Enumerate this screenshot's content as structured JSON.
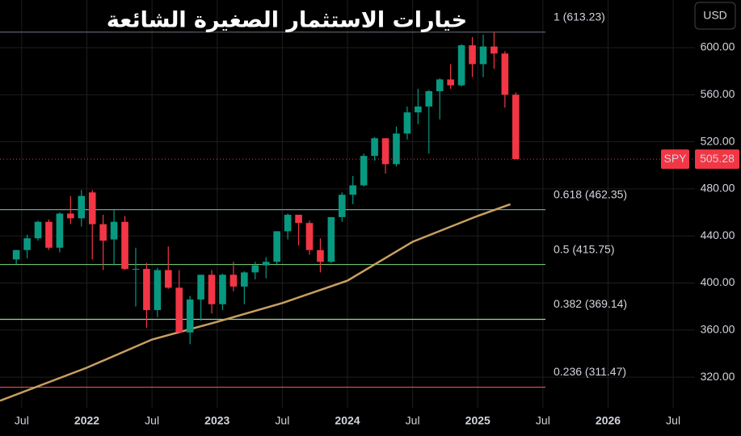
{
  "chart_data": {
    "type": "candlestick",
    "title": "خيارات الاستثمار الصغيرة الشائعة",
    "currency": "USD",
    "symbol": "SPY",
    "last_price": 505.28,
    "up_color": "#089981",
    "down_color": "#f23645",
    "x": [
      "2021-06",
      "2021-07",
      "2021-08",
      "2021-09",
      "2021-10",
      "2021-11",
      "2021-12",
      "2022-01",
      "2022-02",
      "2022-03",
      "2022-04",
      "2022-05",
      "2022-06",
      "2022-07",
      "2022-08",
      "2022-09",
      "2022-10",
      "2022-11",
      "2022-12",
      "2023-01",
      "2023-02",
      "2023-03",
      "2023-04",
      "2023-05",
      "2023-06",
      "2023-07",
      "2023-08",
      "2023-09",
      "2023-10",
      "2023-11",
      "2023-12",
      "2024-01",
      "2024-02",
      "2024-03",
      "2024-04",
      "2024-05",
      "2024-06",
      "2024-07",
      "2024-08",
      "2024-09",
      "2024-10",
      "2024-11",
      "2024-12",
      "2025-01",
      "2025-02",
      "2025-03",
      "2025-04"
    ],
    "open": [
      420,
      428,
      438,
      452,
      430,
      459,
      455,
      477,
      450,
      437,
      452,
      412,
      412,
      377,
      411,
      396,
      358,
      386,
      407,
      382,
      407,
      397,
      409,
      415,
      418,
      444,
      458,
      451,
      428,
      418,
      456,
      475,
      483,
      508,
      523,
      501,
      527,
      545,
      550,
      563,
      573,
      568,
      602,
      586,
      601,
      595,
      560
    ],
    "high": [
      428,
      441,
      453,
      454,
      460,
      474,
      479,
      479,
      458,
      462,
      457,
      430,
      417,
      413,
      431,
      411,
      389,
      407,
      411,
      408,
      418,
      410,
      418,
      422,
      444,
      459,
      458,
      453,
      438,
      456,
      477,
      491,
      510,
      524,
      523,
      533,
      550,
      565,
      564,
      574,
      586,
      603,
      609,
      611,
      613,
      597,
      562
    ],
    "low": [
      416,
      421,
      436,
      428,
      426,
      450,
      448,
      420,
      411,
      415,
      411,
      380,
      362,
      371,
      395,
      357,
      348,
      368,
      374,
      377,
      393,
      382,
      403,
      404,
      416,
      437,
      432,
      424,
      409,
      417,
      452,
      467,
      482,
      504,
      493,
      499,
      522,
      535,
      510,
      539,
      565,
      567,
      575,
      575,
      582,
      549,
      505
    ],
    "close": [
      428,
      438,
      452,
      430,
      459,
      455,
      474,
      450,
      436,
      452,
      412,
      412,
      377,
      411,
      396,
      358,
      386,
      407,
      382,
      407,
      397,
      409,
      415,
      418,
      444,
      458,
      451,
      428,
      418,
      456,
      475,
      483,
      508,
      523,
      501,
      527,
      545,
      550,
      563,
      573,
      568,
      602,
      586,
      601,
      595,
      560,
      505.28
    ],
    "ma": {
      "color": "#c8a060",
      "x": [
        "2021-05",
        "2022-01",
        "2022-07",
        "2023-01",
        "2023-07",
        "2024-01",
        "2024-07",
        "2025-01",
        "2025-04"
      ],
      "values": [
        300,
        328,
        352,
        367,
        383,
        402,
        435,
        457,
        467
      ]
    },
    "fib_levels": [
      {
        "value": 613.23,
        "label": "1 (613.23)",
        "color": "#5d606b"
      },
      {
        "value": 462.35,
        "label": "0.618 (462.35)",
        "color": "#5fa3a3"
      },
      {
        "value": 415.75,
        "label": "0.5 (415.75)",
        "color": "#6fbf6f"
      },
      {
        "value": 369.14,
        "label": "0.382 (369.14)",
        "color": "#9ad59a"
      },
      {
        "value": 311.47,
        "label": "0.236 (311.47)",
        "color": "#e8504f"
      }
    ],
    "xlim": [
      "2021-05",
      "2026-09"
    ],
    "xticks": [
      {
        "value": "2021-07",
        "label": "Jul"
      },
      {
        "value": "2022-01",
        "label": "2022"
      },
      {
        "value": "2022-07",
        "label": "Jul"
      },
      {
        "value": "2023-01",
        "label": "2023"
      },
      {
        "value": "2023-07",
        "label": "Jul"
      },
      {
        "value": "2024-01",
        "label": "2024"
      },
      {
        "value": "2024-07",
        "label": "Jul"
      },
      {
        "value": "2025-01",
        "label": "2025"
      },
      {
        "value": "2025-07",
        "label": "Jul"
      },
      {
        "value": "2026-01",
        "label": "2026"
      },
      {
        "value": "2026-07",
        "label": "Jul"
      }
    ],
    "ylim": [
      294,
      640.5
    ],
    "yticks": [
      {
        "value": 320,
        "label": "320.00"
      },
      {
        "value": 360,
        "label": "360.00"
      },
      {
        "value": 400,
        "label": "400.00"
      },
      {
        "value": 440,
        "label": "440.00"
      },
      {
        "value": 480,
        "label": "480.00"
      },
      {
        "value": 520,
        "label": "520.00"
      },
      {
        "value": 560,
        "label": "560.00"
      },
      {
        "value": 600,
        "label": "600.00"
      }
    ],
    "grid": true
  }
}
